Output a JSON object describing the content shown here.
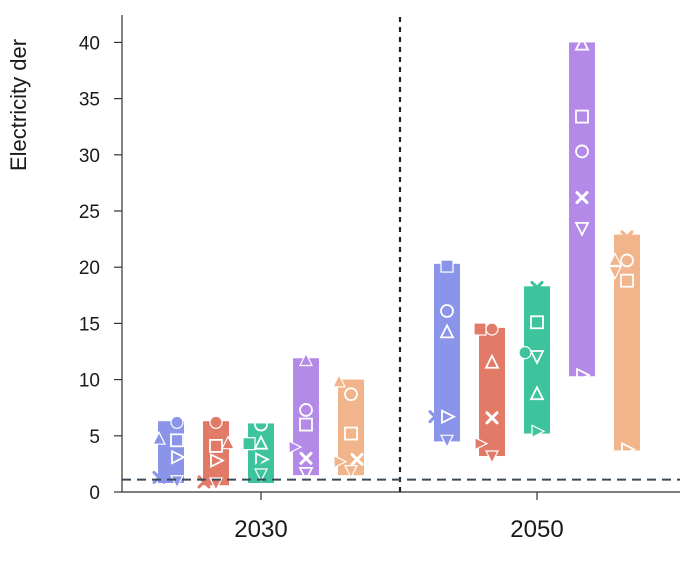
{
  "chart_data": {
    "type": "scatter",
    "ylabel": "Electricity der",
    "ylim": [
      0,
      42
    ],
    "yticks": [
      0,
      5,
      10,
      15,
      20,
      25,
      30,
      35,
      40
    ],
    "categories": [
      "2030",
      "2050"
    ],
    "reference_line": {
      "y": 1.1,
      "style": "dashed",
      "color": "#3a4a5a"
    },
    "divider": {
      "between": [
        "2030",
        "2050"
      ],
      "style": "dotted",
      "color": "#222222"
    },
    "groups": [
      {
        "category": "2030",
        "color": "#8a94e8",
        "range": [
          0.8,
          6.3
        ],
        "points": [
          {
            "marker": "circle",
            "y": 6.2,
            "fill": true,
            "dx": 1
          },
          {
            "marker": "triangle-up",
            "y": 4.7,
            "fill": true,
            "dx": -2
          },
          {
            "marker": "square",
            "y": 4.6,
            "fill": false,
            "dx": 1
          },
          {
            "marker": "triangle-right",
            "y": 3.1,
            "fill": false,
            "dx": 1
          },
          {
            "marker": "x",
            "y": 1.3,
            "fill": true,
            "dx": -2
          },
          {
            "marker": "triangle-down",
            "y": 1.0,
            "fill": true,
            "dx": 1
          }
        ]
      },
      {
        "category": "2030",
        "color": "#e27a68",
        "range": [
          0.6,
          6.3
        ],
        "points": [
          {
            "marker": "circle",
            "y": 6.2,
            "fill": true,
            "dx": 0
          },
          {
            "marker": "triangle-up",
            "y": 4.3,
            "fill": true,
            "dx": 2
          },
          {
            "marker": "square",
            "y": 4.1,
            "fill": false,
            "dx": 0
          },
          {
            "marker": "triangle-right",
            "y": 2.8,
            "fill": false,
            "dx": 0
          },
          {
            "marker": "x",
            "y": 0.9,
            "fill": true,
            "dx": -2
          },
          {
            "marker": "triangle-down",
            "y": 0.8,
            "fill": true,
            "dx": 0
          }
        ]
      },
      {
        "category": "2030",
        "color": "#3dc49c",
        "range": [
          0.8,
          6.1
        ],
        "points": [
          {
            "marker": "circle",
            "y": 6.0,
            "fill": false,
            "dx": 0
          },
          {
            "marker": "square",
            "y": 4.3,
            "fill": true,
            "dx": -2
          },
          {
            "marker": "triangle-up",
            "y": 4.3,
            "fill": false,
            "dx": 0
          },
          {
            "marker": "triangle-right",
            "y": 2.9,
            "fill": false,
            "dx": 0
          },
          {
            "marker": "x",
            "y": 2.2,
            "fill": true,
            "dx": -1
          },
          {
            "marker": "triangle-down",
            "y": 1.6,
            "fill": true,
            "dx": 0
          }
        ]
      },
      {
        "category": "2030",
        "color": "#b48ae8",
        "range": [
          1.5,
          11.9
        ],
        "points": [
          {
            "marker": "triangle-up",
            "y": 11.7,
            "fill": true,
            "dx": 0
          },
          {
            "marker": "circle",
            "y": 7.3,
            "fill": false,
            "dx": 0
          },
          {
            "marker": "square",
            "y": 6.0,
            "fill": false,
            "dx": 0
          },
          {
            "marker": "triangle-right",
            "y": 4.0,
            "fill": true,
            "dx": -2
          },
          {
            "marker": "x",
            "y": 3.0,
            "fill": false,
            "dx": 0
          },
          {
            "marker": "triangle-down",
            "y": 1.7,
            "fill": false,
            "dx": 0
          }
        ]
      },
      {
        "category": "2030",
        "color": "#f2b48a",
        "range": [
          1.5,
          10.0
        ],
        "points": [
          {
            "marker": "triangle-up",
            "y": 9.8,
            "fill": true,
            "dx": -2
          },
          {
            "marker": "circle",
            "y": 8.7,
            "fill": false,
            "dx": 0
          },
          {
            "marker": "square",
            "y": 5.2,
            "fill": false,
            "dx": 0
          },
          {
            "marker": "x",
            "y": 2.9,
            "fill": false,
            "dx": 1
          },
          {
            "marker": "triangle-right",
            "y": 2.7,
            "fill": true,
            "dx": -2
          },
          {
            "marker": "triangle-down",
            "y": 1.9,
            "fill": true,
            "dx": 0
          }
        ]
      },
      {
        "category": "2050",
        "color": "#8a94e8",
        "range": [
          4.5,
          20.3
        ],
        "points": [
          {
            "marker": "square",
            "y": 20.1,
            "fill": true,
            "dx": 0
          },
          {
            "marker": "circle",
            "y": 16.1,
            "fill": false,
            "dx": 0
          },
          {
            "marker": "triangle-up",
            "y": 14.2,
            "fill": false,
            "dx": 0
          },
          {
            "marker": "x",
            "y": 6.7,
            "fill": true,
            "dx": -2
          },
          {
            "marker": "triangle-right",
            "y": 6.7,
            "fill": false,
            "dx": 0
          },
          {
            "marker": "triangle-down",
            "y": 4.6,
            "fill": true,
            "dx": 0
          }
        ]
      },
      {
        "category": "2050",
        "color": "#e27a68",
        "range": [
          3.2,
          14.6
        ],
        "points": [
          {
            "marker": "square",
            "y": 14.5,
            "fill": true,
            "dx": -2
          },
          {
            "marker": "circle",
            "y": 14.5,
            "fill": true,
            "dx": 0
          },
          {
            "marker": "triangle-up",
            "y": 11.5,
            "fill": false,
            "dx": 0
          },
          {
            "marker": "x",
            "y": 6.6,
            "fill": false,
            "dx": 0
          },
          {
            "marker": "triangle-right",
            "y": 4.3,
            "fill": true,
            "dx": -2
          },
          {
            "marker": "triangle-down",
            "y": 3.2,
            "fill": true,
            "dx": 0
          }
        ]
      },
      {
        "category": "2050",
        "color": "#3dc49c",
        "range": [
          5.2,
          18.3
        ],
        "points": [
          {
            "marker": "x",
            "y": 18.2,
            "fill": true,
            "dx": 0
          },
          {
            "marker": "square",
            "y": 15.1,
            "fill": false,
            "dx": 0
          },
          {
            "marker": "circle",
            "y": 12.4,
            "fill": true,
            "dx": -2
          },
          {
            "marker": "triangle-down",
            "y": 12.1,
            "fill": false,
            "dx": 0
          },
          {
            "marker": "triangle-up",
            "y": 8.7,
            "fill": false,
            "dx": 0
          },
          {
            "marker": "triangle-right",
            "y": 5.4,
            "fill": true,
            "dx": 0
          }
        ]
      },
      {
        "category": "2050",
        "color": "#b48ae8",
        "range": [
          10.3,
          40.0
        ],
        "points": [
          {
            "marker": "triangle-up",
            "y": 39.8,
            "fill": false,
            "dx": 0
          },
          {
            "marker": "square",
            "y": 33.4,
            "fill": false,
            "dx": 0
          },
          {
            "marker": "circle",
            "y": 30.3,
            "fill": false,
            "dx": 0
          },
          {
            "marker": "x",
            "y": 26.2,
            "fill": false,
            "dx": 0
          },
          {
            "marker": "triangle-down",
            "y": 23.5,
            "fill": false,
            "dx": 0
          },
          {
            "marker": "triangle-right",
            "y": 10.4,
            "fill": false,
            "dx": 0
          }
        ]
      },
      {
        "category": "2050",
        "color": "#f2b48a",
        "range": [
          3.7,
          22.9
        ],
        "points": [
          {
            "marker": "x",
            "y": 22.7,
            "fill": true,
            "dx": 0
          },
          {
            "marker": "triangle-up",
            "y": 20.6,
            "fill": true,
            "dx": -2
          },
          {
            "marker": "circle",
            "y": 20.6,
            "fill": false,
            "dx": 0
          },
          {
            "marker": "triangle-down",
            "y": 19.6,
            "fill": true,
            "dx": -2
          },
          {
            "marker": "square",
            "y": 18.8,
            "fill": false,
            "dx": 0
          },
          {
            "marker": "triangle-right",
            "y": 3.8,
            "fill": false,
            "dx": 0
          }
        ]
      }
    ]
  }
}
